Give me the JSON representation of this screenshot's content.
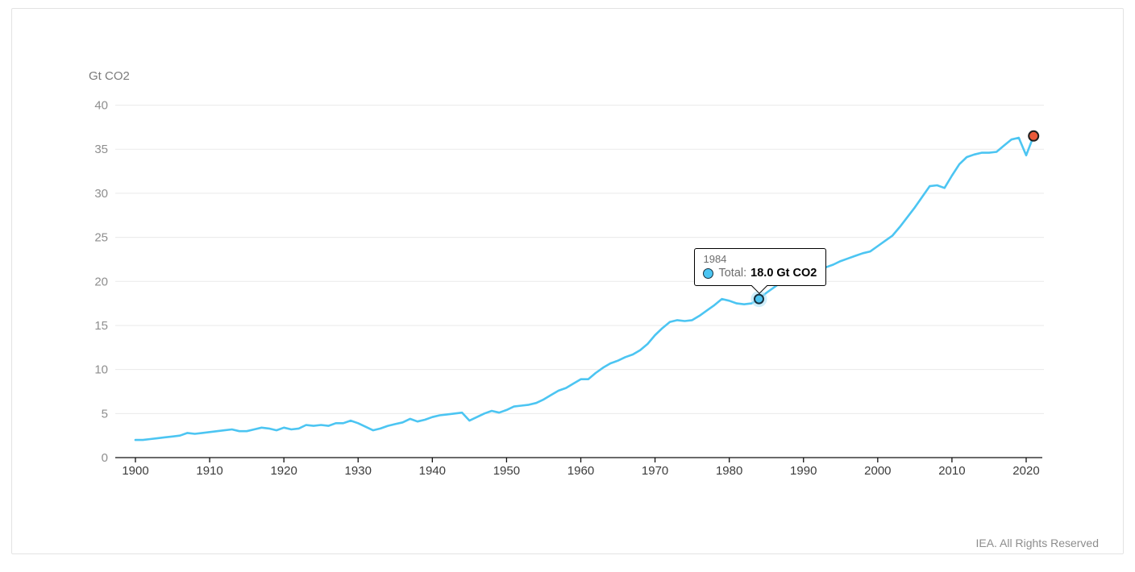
{
  "footer": {
    "credit": "IEA. All Rights Reserved"
  },
  "tooltip": {
    "year": "1984",
    "series_label": "Total:",
    "value_text": "18.0 Gt CO2"
  },
  "colors": {
    "line": "#4cc5f2",
    "marker_fill": "#4cc5f2",
    "marker_stroke": "#16303f",
    "marker_halo": "#a5e0f7",
    "end_dot": "#ea5a3a",
    "end_dot_stroke": "#1f1f1f",
    "grid": "#eaeaea",
    "axis": "#111111",
    "xtick_label": "#3c3c3c",
    "ytick_label": "#8e8e8e"
  },
  "chart_data": {
    "type": "line",
    "title": "",
    "xlabel": "",
    "ylabel": "Gt CO2",
    "ylim": [
      0,
      40
    ],
    "xlim": [
      1900,
      2021
    ],
    "grid": "horizontal",
    "legend_position": "none",
    "yticks": [
      0,
      5,
      10,
      15,
      20,
      25,
      30,
      35,
      40
    ],
    "xticks": [
      1900,
      1910,
      1920,
      1930,
      1940,
      1950,
      1960,
      1970,
      1980,
      1990,
      2000,
      2010,
      2020
    ],
    "x": [
      1900,
      1901,
      1902,
      1903,
      1904,
      1905,
      1906,
      1907,
      1908,
      1909,
      1910,
      1911,
      1912,
      1913,
      1914,
      1915,
      1916,
      1917,
      1918,
      1919,
      1920,
      1921,
      1922,
      1923,
      1924,
      1925,
      1926,
      1927,
      1928,
      1929,
      1930,
      1931,
      1932,
      1933,
      1934,
      1935,
      1936,
      1937,
      1938,
      1939,
      1940,
      1941,
      1942,
      1943,
      1944,
      1945,
      1946,
      1947,
      1948,
      1949,
      1950,
      1951,
      1952,
      1953,
      1954,
      1955,
      1956,
      1957,
      1958,
      1959,
      1960,
      1961,
      1962,
      1963,
      1964,
      1965,
      1966,
      1967,
      1968,
      1969,
      1970,
      1971,
      1972,
      1973,
      1974,
      1975,
      1976,
      1977,
      1978,
      1979,
      1980,
      1981,
      1982,
      1983,
      1984,
      1985,
      1986,
      1987,
      1988,
      1989,
      1990,
      1991,
      1992,
      1993,
      1994,
      1995,
      1996,
      1997,
      1998,
      1999,
      2000,
      2001,
      2002,
      2003,
      2004,
      2005,
      2006,
      2007,
      2008,
      2009,
      2010,
      2011,
      2012,
      2013,
      2014,
      2015,
      2016,
      2017,
      2018,
      2019,
      2020,
      2021
    ],
    "series": [
      {
        "name": "Total",
        "values": [
          2.0,
          2.0,
          2.1,
          2.2,
          2.3,
          2.4,
          2.5,
          2.8,
          2.7,
          2.8,
          2.9,
          3.0,
          3.1,
          3.2,
          3.0,
          3.0,
          3.2,
          3.4,
          3.3,
          3.1,
          3.4,
          3.2,
          3.3,
          3.7,
          3.6,
          3.7,
          3.6,
          3.9,
          3.9,
          4.2,
          3.9,
          3.5,
          3.1,
          3.3,
          3.6,
          3.8,
          4.0,
          4.4,
          4.1,
          4.3,
          4.6,
          4.8,
          4.9,
          5.0,
          5.1,
          4.2,
          4.6,
          5.0,
          5.3,
          5.1,
          5.4,
          5.8,
          5.9,
          6.0,
          6.2,
          6.6,
          7.1,
          7.6,
          7.9,
          8.4,
          8.9,
          8.9,
          9.6,
          10.2,
          10.7,
          11.0,
          11.4,
          11.7,
          12.2,
          12.9,
          13.9,
          14.7,
          15.4,
          15.6,
          15.5,
          15.6,
          16.1,
          16.7,
          17.3,
          18.0,
          17.8,
          17.5,
          17.4,
          17.5,
          18.0,
          18.7,
          19.3,
          19.9,
          20.4,
          20.9,
          21.3,
          21.5,
          21.5,
          21.6,
          21.9,
          22.3,
          22.6,
          22.9,
          23.2,
          23.4,
          24.0,
          24.6,
          25.2,
          26.2,
          27.3,
          28.4,
          29.6,
          30.8,
          30.9,
          30.6,
          32.0,
          33.3,
          34.1,
          34.4,
          34.6,
          34.6,
          34.7,
          35.4,
          36.1,
          36.3,
          34.3,
          36.5
        ]
      }
    ],
    "highlight": {
      "year": 1984,
      "value": 18.0
    },
    "end_marker": {
      "year": 2021,
      "value": 36.5
    }
  }
}
